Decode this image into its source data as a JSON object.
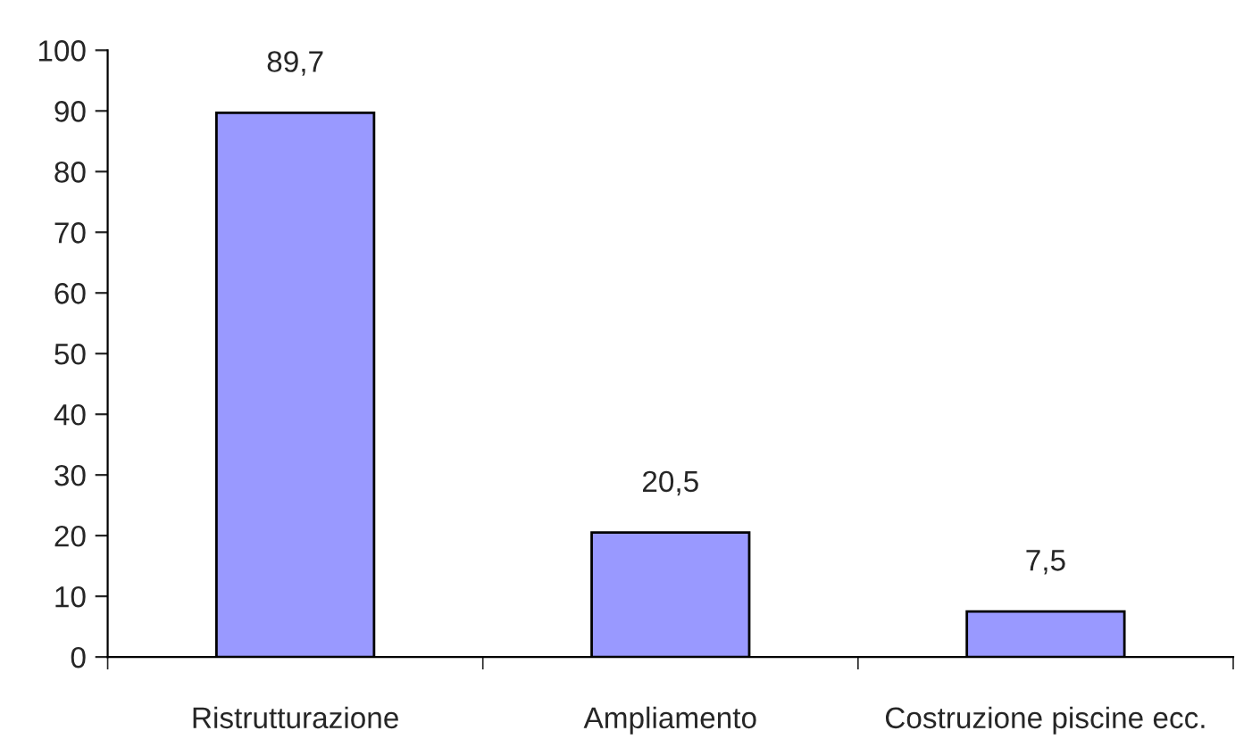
{
  "chart_data": {
    "type": "bar",
    "categories": [
      "Ristrutturazione",
      "Ampliamento",
      "Costruzione piscine ecc."
    ],
    "values": [
      89.7,
      20.5,
      7.5
    ],
    "value_labels": [
      "89,7",
      "20,5",
      "7,5"
    ],
    "color": "#9999ff",
    "ylim": [
      0,
      100
    ],
    "yticks": [
      0,
      10,
      20,
      30,
      40,
      50,
      60,
      70,
      80,
      90,
      100
    ],
    "grid": false,
    "legend": false
  }
}
